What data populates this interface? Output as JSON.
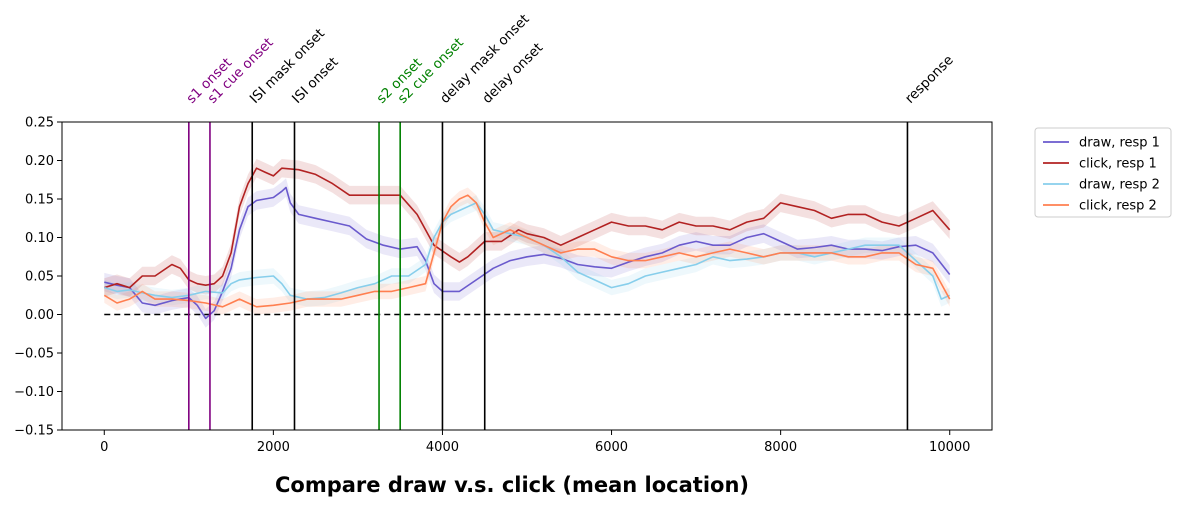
{
  "chart_data": {
    "type": "line",
    "title": "Compare draw v.s. click (mean location)",
    "xlabel": "",
    "ylabel": "",
    "xlim": [
      -500,
      10500
    ],
    "ylim": [
      -0.15,
      0.25
    ],
    "x_ticks": [
      0,
      2000,
      4000,
      6000,
      8000,
      10000
    ],
    "x_tick_labels": [
      "0",
      "2000",
      "4000",
      "6000",
      "8000",
      "10000"
    ],
    "y_ticks": [
      -0.15,
      -0.1,
      -0.05,
      0.0,
      0.05,
      0.1,
      0.15,
      0.2,
      0.25
    ],
    "y_tick_labels": [
      "−0.15",
      "−0.10",
      "−0.05",
      "0.00",
      "0.05",
      "0.10",
      "0.15",
      "0.20",
      "0.25"
    ],
    "grid": false,
    "legend_position": "outside-top-right",
    "baseline": {
      "y": 0.0,
      "x_range": [
        0,
        10000
      ],
      "style": "dashed",
      "color": "#000000"
    },
    "events": [
      {
        "x": 1000,
        "label": "s1 onset",
        "color": "#800080"
      },
      {
        "x": 1250,
        "label": "s1 cue onset",
        "color": "#800080"
      },
      {
        "x": 1750,
        "label": "ISI mask onset",
        "color": "#000000"
      },
      {
        "x": 2250,
        "label": "ISI onset",
        "color": "#000000"
      },
      {
        "x": 3250,
        "label": "s2 onset",
        "color": "#008000"
      },
      {
        "x": 3500,
        "label": "s2 cue onset",
        "color": "#008000"
      },
      {
        "x": 4000,
        "label": "delay mask onset",
        "color": "#000000"
      },
      {
        "x": 4500,
        "label": "delay onset",
        "color": "#000000"
      },
      {
        "x": 9500,
        "label": "response",
        "color": "#000000"
      }
    ],
    "series": [
      {
        "name": "draw, resp 1",
        "color": "#6a5acd",
        "band": 0.012,
        "points": [
          [
            0,
            0.042
          ],
          [
            150,
            0.038
          ],
          [
            300,
            0.035
          ],
          [
            450,
            0.015
          ],
          [
            600,
            0.012
          ],
          [
            800,
            0.018
          ],
          [
            1000,
            0.022
          ],
          [
            1100,
            0.012
          ],
          [
            1200,
            -0.005
          ],
          [
            1300,
            0.005
          ],
          [
            1400,
            0.03
          ],
          [
            1500,
            0.06
          ],
          [
            1600,
            0.11
          ],
          [
            1700,
            0.14
          ],
          [
            1800,
            0.148
          ],
          [
            1900,
            0.15
          ],
          [
            2000,
            0.152
          ],
          [
            2100,
            0.16
          ],
          [
            2150,
            0.165
          ],
          [
            2200,
            0.145
          ],
          [
            2300,
            0.13
          ],
          [
            2500,
            0.125
          ],
          [
            2700,
            0.12
          ],
          [
            2900,
            0.115
          ],
          [
            3100,
            0.098
          ],
          [
            3300,
            0.09
          ],
          [
            3500,
            0.085
          ],
          [
            3700,
            0.088
          ],
          [
            3800,
            0.07
          ],
          [
            3900,
            0.04
          ],
          [
            4000,
            0.03
          ],
          [
            4200,
            0.03
          ],
          [
            4400,
            0.045
          ],
          [
            4600,
            0.06
          ],
          [
            4800,
            0.07
          ],
          [
            5000,
            0.075
          ],
          [
            5200,
            0.078
          ],
          [
            5400,
            0.073
          ],
          [
            5600,
            0.065
          ],
          [
            5800,
            0.062
          ],
          [
            6000,
            0.06
          ],
          [
            6200,
            0.068
          ],
          [
            6400,
            0.075
          ],
          [
            6600,
            0.08
          ],
          [
            6800,
            0.09
          ],
          [
            7000,
            0.095
          ],
          [
            7200,
            0.09
          ],
          [
            7400,
            0.09
          ],
          [
            7600,
            0.1
          ],
          [
            7800,
            0.105
          ],
          [
            8000,
            0.095
          ],
          [
            8200,
            0.085
          ],
          [
            8400,
            0.087
          ],
          [
            8600,
            0.09
          ],
          [
            8800,
            0.085
          ],
          [
            9000,
            0.085
          ],
          [
            9200,
            0.083
          ],
          [
            9400,
            0.088
          ],
          [
            9600,
            0.09
          ],
          [
            9800,
            0.08
          ],
          [
            10000,
            0.052
          ]
        ]
      },
      {
        "name": "click, resp 1",
        "color": "#b22222",
        "band": 0.012,
        "points": [
          [
            0,
            0.035
          ],
          [
            150,
            0.04
          ],
          [
            300,
            0.035
          ],
          [
            450,
            0.05
          ],
          [
            600,
            0.05
          ],
          [
            800,
            0.065
          ],
          [
            900,
            0.06
          ],
          [
            1000,
            0.045
          ],
          [
            1100,
            0.04
          ],
          [
            1200,
            0.038
          ],
          [
            1300,
            0.04
          ],
          [
            1400,
            0.05
          ],
          [
            1500,
            0.08
          ],
          [
            1600,
            0.14
          ],
          [
            1700,
            0.17
          ],
          [
            1800,
            0.19
          ],
          [
            1900,
            0.185
          ],
          [
            2000,
            0.18
          ],
          [
            2100,
            0.19
          ],
          [
            2300,
            0.188
          ],
          [
            2500,
            0.182
          ],
          [
            2700,
            0.17
          ],
          [
            2900,
            0.155
          ],
          [
            3100,
            0.155
          ],
          [
            3300,
            0.155
          ],
          [
            3500,
            0.155
          ],
          [
            3700,
            0.13
          ],
          [
            3900,
            0.09
          ],
          [
            4100,
            0.075
          ],
          [
            4200,
            0.068
          ],
          [
            4300,
            0.075
          ],
          [
            4500,
            0.095
          ],
          [
            4700,
            0.095
          ],
          [
            4900,
            0.11
          ],
          [
            5000,
            0.105
          ],
          [
            5200,
            0.1
          ],
          [
            5400,
            0.09
          ],
          [
            5600,
            0.1
          ],
          [
            5800,
            0.11
          ],
          [
            6000,
            0.12
          ],
          [
            6200,
            0.115
          ],
          [
            6400,
            0.115
          ],
          [
            6600,
            0.11
          ],
          [
            6800,
            0.12
          ],
          [
            7000,
            0.115
          ],
          [
            7200,
            0.115
          ],
          [
            7400,
            0.11
          ],
          [
            7600,
            0.12
          ],
          [
            7800,
            0.125
          ],
          [
            8000,
            0.145
          ],
          [
            8200,
            0.14
          ],
          [
            8400,
            0.135
          ],
          [
            8600,
            0.125
          ],
          [
            8800,
            0.13
          ],
          [
            9000,
            0.13
          ],
          [
            9200,
            0.12
          ],
          [
            9400,
            0.115
          ],
          [
            9600,
            0.125
          ],
          [
            9800,
            0.135
          ],
          [
            10000,
            0.11
          ]
        ]
      },
      {
        "name": "draw, resp 2",
        "color": "#87ceeb",
        "band": 0.01,
        "points": [
          [
            0,
            0.035
          ],
          [
            150,
            0.03
          ],
          [
            300,
            0.032
          ],
          [
            450,
            0.028
          ],
          [
            600,
            0.025
          ],
          [
            800,
            0.022
          ],
          [
            1000,
            0.025
          ],
          [
            1200,
            0.03
          ],
          [
            1400,
            0.028
          ],
          [
            1500,
            0.04
          ],
          [
            1600,
            0.045
          ],
          [
            1800,
            0.048
          ],
          [
            2000,
            0.05
          ],
          [
            2100,
            0.04
          ],
          [
            2200,
            0.025
          ],
          [
            2400,
            0.02
          ],
          [
            2600,
            0.022
          ],
          [
            2800,
            0.028
          ],
          [
            3000,
            0.035
          ],
          [
            3200,
            0.04
          ],
          [
            3400,
            0.05
          ],
          [
            3600,
            0.05
          ],
          [
            3800,
            0.065
          ],
          [
            3900,
            0.1
          ],
          [
            4000,
            0.12
          ],
          [
            4100,
            0.13
          ],
          [
            4200,
            0.135
          ],
          [
            4300,
            0.14
          ],
          [
            4400,
            0.145
          ],
          [
            4500,
            0.13
          ],
          [
            4600,
            0.11
          ],
          [
            4800,
            0.105
          ],
          [
            5000,
            0.1
          ],
          [
            5200,
            0.09
          ],
          [
            5400,
            0.075
          ],
          [
            5600,
            0.055
          ],
          [
            5800,
            0.045
          ],
          [
            6000,
            0.035
          ],
          [
            6200,
            0.04
          ],
          [
            6400,
            0.05
          ],
          [
            6600,
            0.055
          ],
          [
            6800,
            0.06
          ],
          [
            7000,
            0.065
          ],
          [
            7200,
            0.075
          ],
          [
            7400,
            0.07
          ],
          [
            7600,
            0.072
          ],
          [
            7800,
            0.075
          ],
          [
            8000,
            0.08
          ],
          [
            8200,
            0.08
          ],
          [
            8400,
            0.075
          ],
          [
            8600,
            0.08
          ],
          [
            8800,
            0.085
          ],
          [
            9000,
            0.09
          ],
          [
            9200,
            0.09
          ],
          [
            9400,
            0.09
          ],
          [
            9600,
            0.07
          ],
          [
            9800,
            0.05
          ],
          [
            9900,
            0.02
          ],
          [
            10000,
            0.025
          ]
        ]
      },
      {
        "name": "click, resp 2",
        "color": "#ff7f50",
        "band": 0.01,
        "points": [
          [
            0,
            0.025
          ],
          [
            150,
            0.015
          ],
          [
            300,
            0.02
          ],
          [
            450,
            0.03
          ],
          [
            600,
            0.02
          ],
          [
            800,
            0.02
          ],
          [
            1000,
            0.018
          ],
          [
            1200,
            0.015
          ],
          [
            1400,
            0.01
          ],
          [
            1500,
            0.015
          ],
          [
            1600,
            0.02
          ],
          [
            1700,
            0.015
          ],
          [
            1800,
            0.01
          ],
          [
            2000,
            0.012
          ],
          [
            2200,
            0.015
          ],
          [
            2400,
            0.02
          ],
          [
            2600,
            0.02
          ],
          [
            2800,
            0.02
          ],
          [
            3000,
            0.025
          ],
          [
            3200,
            0.03
          ],
          [
            3400,
            0.03
          ],
          [
            3600,
            0.035
          ],
          [
            3800,
            0.04
          ],
          [
            3900,
            0.08
          ],
          [
            4000,
            0.12
          ],
          [
            4100,
            0.14
          ],
          [
            4200,
            0.15
          ],
          [
            4300,
            0.155
          ],
          [
            4400,
            0.145
          ],
          [
            4500,
            0.12
          ],
          [
            4600,
            0.1
          ],
          [
            4800,
            0.11
          ],
          [
            5000,
            0.1
          ],
          [
            5200,
            0.09
          ],
          [
            5400,
            0.08
          ],
          [
            5600,
            0.085
          ],
          [
            5800,
            0.085
          ],
          [
            6000,
            0.075
          ],
          [
            6200,
            0.07
          ],
          [
            6400,
            0.07
          ],
          [
            6600,
            0.075
          ],
          [
            6800,
            0.08
          ],
          [
            7000,
            0.075
          ],
          [
            7200,
            0.08
          ],
          [
            7400,
            0.085
          ],
          [
            7600,
            0.08
          ],
          [
            7800,
            0.075
          ],
          [
            8000,
            0.08
          ],
          [
            8200,
            0.08
          ],
          [
            8400,
            0.08
          ],
          [
            8600,
            0.08
          ],
          [
            8800,
            0.075
          ],
          [
            9000,
            0.075
          ],
          [
            9200,
            0.08
          ],
          [
            9400,
            0.08
          ],
          [
            9600,
            0.065
          ],
          [
            9800,
            0.06
          ],
          [
            10000,
            0.02
          ]
        ]
      }
    ]
  }
}
